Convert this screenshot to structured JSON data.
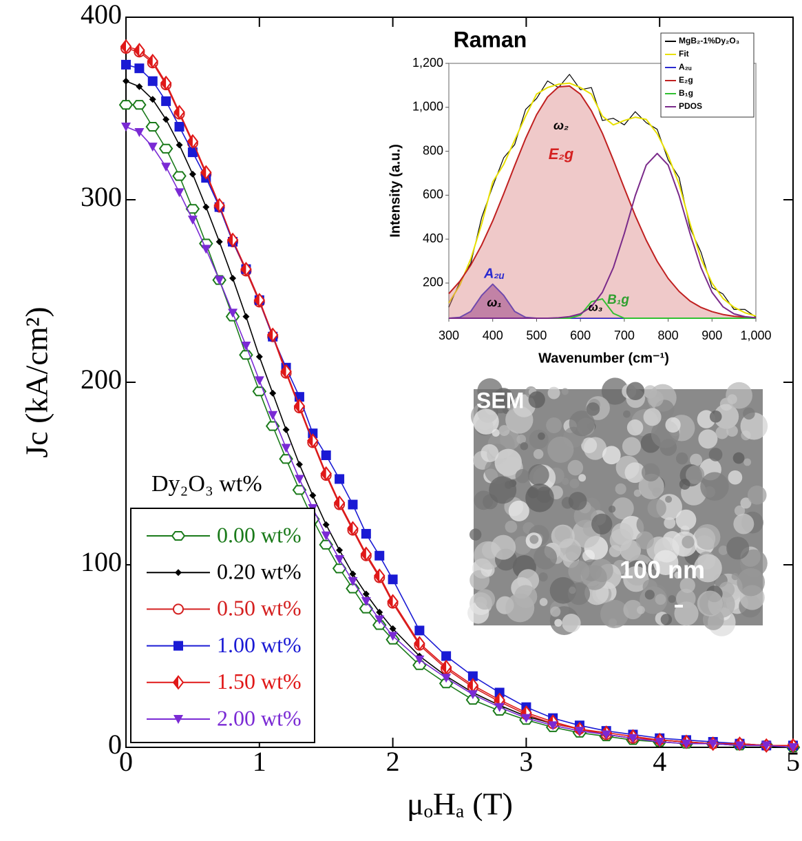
{
  "chart_data": [
    {
      "type": "line",
      "y_label": "Jc (kA/cm²)",
      "x_label": "μₒHₐ (T)",
      "legend_title": "Dy₂O₃ wt%",
      "x": [
        0,
        0.1,
        0.2,
        0.3,
        0.4,
        0.5,
        0.6,
        0.7,
        0.8,
        0.9,
        1.0,
        1.1,
        1.2,
        1.3,
        1.4,
        1.5,
        1.6,
        1.7,
        1.8,
        1.9,
        2.0,
        2.2,
        2.4,
        2.6,
        2.8,
        3.0,
        3.2,
        3.4,
        3.6,
        3.8,
        4.0,
        4.2,
        4.4,
        4.6,
        4.8,
        5.0
      ],
      "xlim": [
        0,
        5
      ],
      "ylim": [
        0,
        400
      ],
      "xticks": [
        0,
        1,
        2,
        3,
        4,
        5
      ],
      "yticks": [
        0,
        100,
        200,
        300,
        400
      ],
      "series": [
        {
          "name": "0.00 wt%",
          "color": "#1a7a1a",
          "marker": "hexagon",
          "values": [
            352,
            352,
            340,
            328,
            313,
            295,
            276,
            256,
            236,
            215,
            195,
            176,
            158,
            141,
            125,
            111,
            98,
            87,
            76,
            67,
            59,
            45,
            35,
            26,
            20,
            15,
            11,
            8,
            6,
            4,
            3,
            2,
            2,
            1,
            1,
            0
          ]
        },
        {
          "name": "0.20 wt%",
          "color": "#000000",
          "marker": "diamond-small",
          "values": [
            365,
            362,
            355,
            344,
            330,
            314,
            296,
            277,
            257,
            236,
            214,
            194,
            174,
            155,
            138,
            122,
            108,
            95,
            84,
            74,
            65,
            50,
            39,
            30,
            23,
            17,
            13,
            10,
            7,
            5,
            4,
            3,
            2,
            1,
            1,
            0
          ]
        },
        {
          "name": "0.50 wt%",
          "color": "#d42020",
          "marker": "circle",
          "values": [
            383,
            381,
            375,
            363,
            347,
            331,
            314,
            296,
            277,
            261,
            244,
            225,
            205,
            186,
            167,
            149,
            133,
            119,
            105,
            93,
            79,
            56,
            43,
            33,
            25,
            18,
            13,
            10,
            7,
            5,
            4,
            3,
            2,
            2,
            1,
            1
          ]
        },
        {
          "name": "1.00 wt%",
          "color": "#1a1ad4",
          "marker": "square",
          "values": [
            374,
            372,
            365,
            354,
            340,
            326,
            312,
            296,
            277,
            262,
            245,
            225,
            208,
            192,
            172,
            160,
            147,
            133,
            117,
            105,
            92,
            64,
            50,
            39,
            30,
            22,
            16,
            12,
            9,
            7,
            5,
            4,
            3,
            2,
            1,
            1
          ]
        },
        {
          "name": "1.50 wt%",
          "color": "#e01818",
          "marker": "half-diamond",
          "values": [
            384,
            382,
            376,
            364,
            348,
            332,
            315,
            297,
            278,
            262,
            245,
            226,
            206,
            187,
            168,
            150,
            134,
            120,
            106,
            94,
            80,
            57,
            44,
            34,
            26,
            19,
            14,
            10,
            8,
            6,
            4,
            3,
            2,
            2,
            1,
            1
          ]
        },
        {
          "name": "2.00 wt%",
          "color": "#7a2ad4",
          "marker": "triangle-down",
          "values": [
            340,
            337,
            329,
            318,
            304,
            289,
            273,
            256,
            238,
            220,
            201,
            182,
            164,
            147,
            131,
            116,
            103,
            91,
            80,
            70,
            61,
            48,
            38,
            29,
            22,
            16,
            12,
            9,
            7,
            5,
            3,
            2,
            2,
            1,
            1,
            0
          ]
        }
      ]
    },
    {
      "type": "line",
      "title": "Raman",
      "y_label": "Intensity (a.u.)",
      "x_label": "Wavenumber (cm⁻¹)",
      "x": [
        300,
        325,
        350,
        375,
        400,
        425,
        450,
        475,
        500,
        525,
        550,
        575,
        600,
        625,
        650,
        675,
        700,
        725,
        750,
        775,
        800,
        825,
        850,
        875,
        900,
        925,
        950,
        975,
        1000
      ],
      "xlim": [
        300,
        1000
      ],
      "ylim": [
        40,
        1200
      ],
      "xticks": [
        300,
        400,
        500,
        600,
        700,
        800,
        900,
        {
          "value": 1000,
          "label": "1,000"
        }
      ],
      "yticks": [
        200,
        400,
        600,
        800,
        {
          "value": 1000,
          "label": "1,000"
        },
        {
          "value": 1200,
          "label": "1,200"
        }
      ],
      "series": [
        {
          "name": "MgB₂-1%Dy₂O₃",
          "color": "#000000",
          "fill": false,
          "values": [
            90,
            205,
            290,
            500,
            640,
            770,
            830,
            990,
            1040,
            1120,
            1090,
            1150,
            1080,
            1090,
            940,
            950,
            920,
            980,
            930,
            900,
            760,
            680,
            450,
            340,
            180,
            150,
            80,
            80,
            45
          ]
        },
        {
          "name": "Fit",
          "color": "#e8e000",
          "fill": false,
          "values": [
            110,
            190,
            310,
            470,
            660,
            740,
            850,
            960,
            1060,
            1090,
            1105,
            1110,
            1090,
            1060,
            960,
            920,
            940,
            955,
            945,
            880,
            780,
            650,
            470,
            310,
            200,
            130,
            90,
            65,
            50
          ]
        },
        {
          "name": "A₂ᵤ",
          "color": "#2a2ad0",
          "fill": true,
          "values": [
            40,
            44,
            71,
            144,
            195,
            144,
            71,
            44,
            40,
            40,
            40,
            40,
            40,
            40,
            40,
            40,
            40,
            40,
            40,
            40,
            40,
            40,
            40,
            40,
            40,
            40,
            40,
            40,
            40
          ]
        },
        {
          "name": "E₂g",
          "color": "#c02020",
          "fill": true,
          "values": [
            152,
            208,
            282,
            374,
            483,
            606,
            734,
            858,
            966,
            1047,
            1093,
            1097,
            1060,
            984,
            882,
            760,
            632,
            507,
            395,
            299,
            221,
            162,
            118,
            89,
            70,
            57,
            49,
            45,
            42
          ]
        },
        {
          "name": "B₁g",
          "color": "#30c030",
          "fill": false,
          "values": [
            40,
            40,
            40,
            40,
            40,
            40,
            40,
            40,
            40,
            40,
            40,
            40,
            54,
            115,
            128,
            62,
            40,
            40,
            40,
            40,
            40,
            40,
            40,
            40,
            40,
            40,
            40,
            40,
            40
          ]
        },
        {
          "name": "PDOS",
          "color": "#7a2a8a",
          "fill": false,
          "values": [
            40,
            40,
            40,
            40,
            40,
            40,
            40,
            40,
            40,
            40,
            42,
            47,
            60,
            92,
            158,
            270,
            425,
            598,
            737,
            790,
            737,
            598,
            425,
            270,
            158,
            92,
            60,
            47,
            42
          ]
        }
      ],
      "annotations": [
        {
          "text": "A₂ᵤ",
          "color": "#2a2ad0"
        },
        {
          "text": "ω₁",
          "color": "#000000"
        },
        {
          "text": "ω₂",
          "color": "#000000"
        },
        {
          "text": "E₂g",
          "color": "#d42020"
        },
        {
          "text": "ω₃",
          "color": "#000000"
        },
        {
          "text": "B₁g",
          "color": "#30a030"
        }
      ]
    }
  ],
  "image": {
    "label": "SEM",
    "scale": "100 nm"
  }
}
